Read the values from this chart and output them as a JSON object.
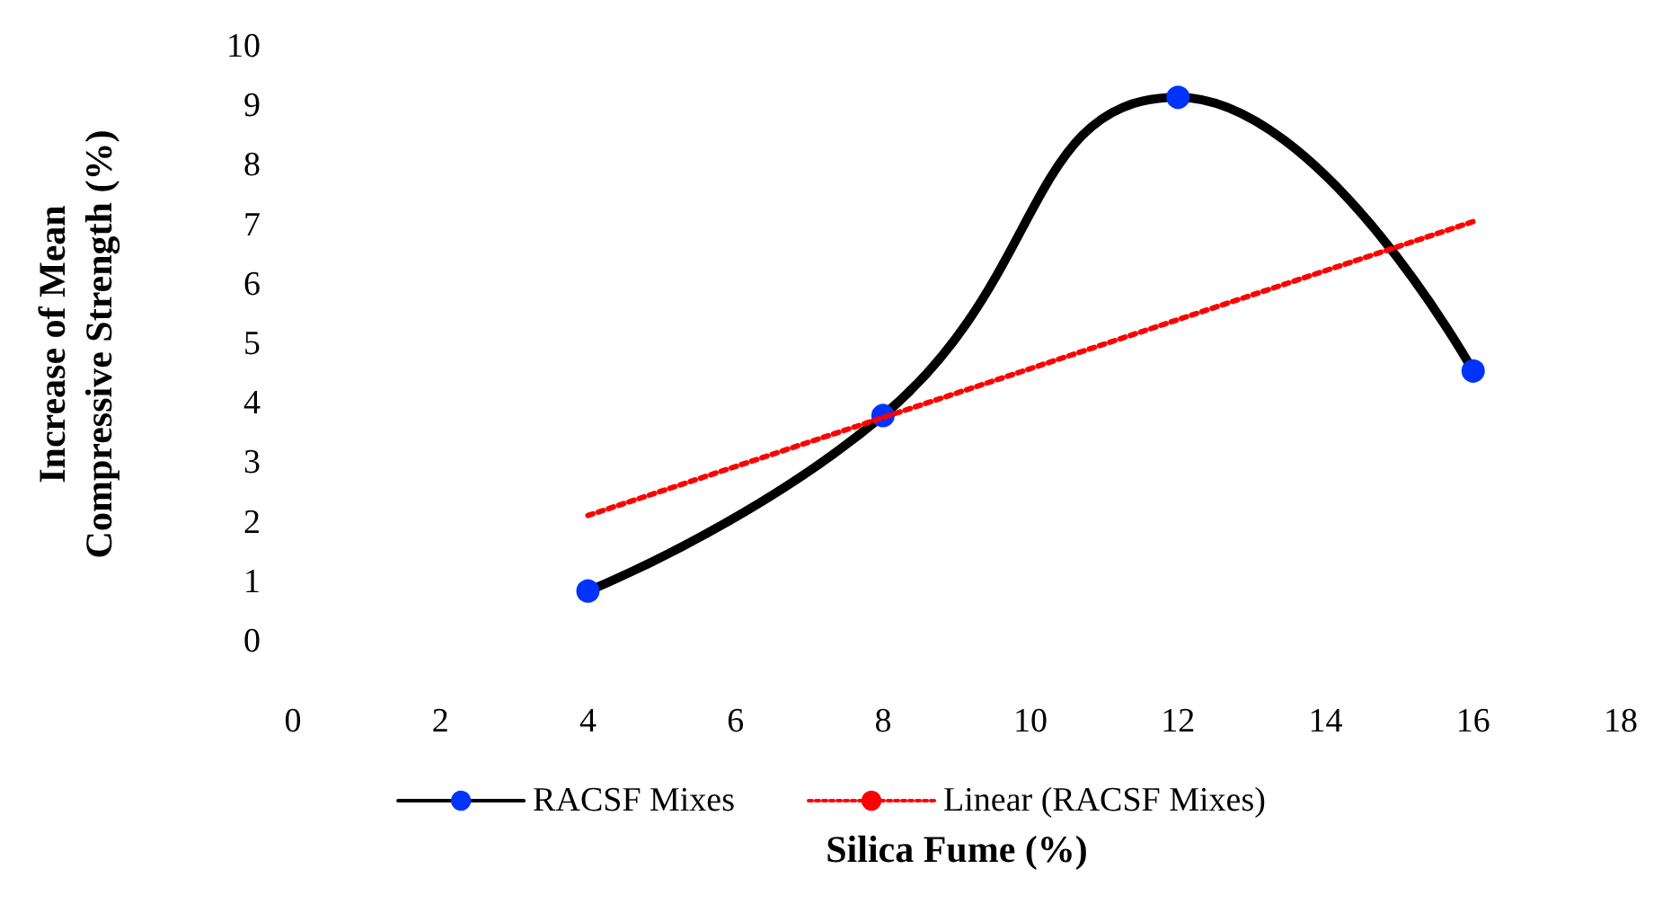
{
  "chart_data": {
    "type": "line",
    "xlabel": "Silica Fume (%)",
    "ylabel": "Increase of Mean\nCompressive Strength (%)",
    "xlim": [
      0,
      18
    ],
    "xticks": [
      0,
      2,
      4,
      6,
      8,
      10,
      12,
      14,
      16,
      18
    ],
    "ylim": [
      0,
      10
    ],
    "yticks": [
      0,
      1,
      2,
      3,
      4,
      5,
      6,
      7,
      8,
      9,
      10
    ],
    "grid": false,
    "legend": "bottom",
    "series": [
      {
        "name": "RACSF Mixes",
        "color": "#000000",
        "colors": [
          "#0033ff",
          "#0033ff",
          "#0033ff",
          "#0033ff"
        ],
        "marker": "circle",
        "line_style": "solid",
        "x": [
          4,
          8,
          12,
          16
        ],
        "values": [
          0.85,
          3.8,
          9.15,
          4.55
        ]
      },
      {
        "name": "Linear (RACSF Mixes)",
        "color": "#ff0000",
        "marker": "none",
        "line_style": "dotted",
        "x": [
          4,
          16
        ],
        "values": [
          2.12,
          7.06
        ]
      }
    ]
  }
}
